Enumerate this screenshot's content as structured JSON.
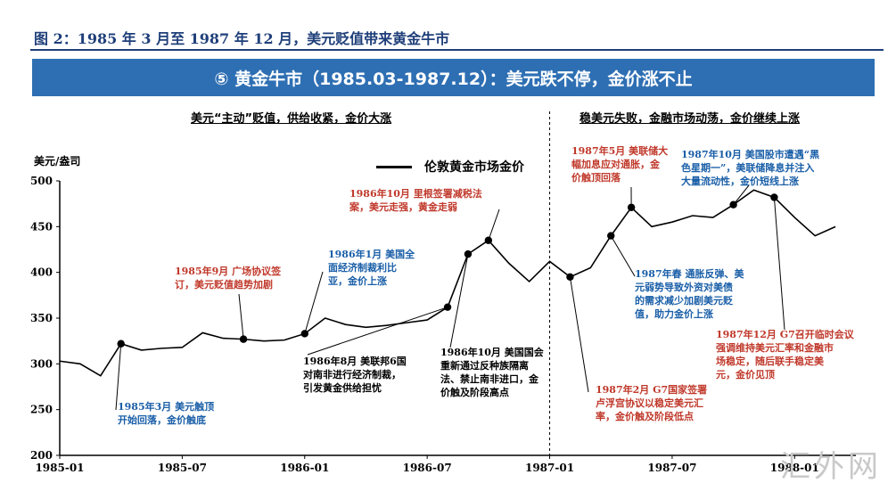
{
  "figure_title": "图 2：1985 年 3 月至 1987 年 12 月，美元贬值带来黄金牛市",
  "banner": "⑤ 黄金牛市（1985.03-1987.12）：美元跌不停，金价涨不止",
  "phases": [
    "美元“主动”贬值，供给收紧，金价大涨",
    "稳美元失败，金融市场动荡，金价继续上涨"
  ],
  "watermark": "汇外网",
  "colors": {
    "banner": "#2e6fb3",
    "title": "#1f3f7a",
    "red": "#c0392b",
    "blue": "#1a5fa8",
    "line": "#000000"
  },
  "annotations": [
    {
      "text": [
        "1985年3月 美元触顶",
        "开始回落，金价触底"
      ],
      "color": "blue",
      "point": 3
    },
    {
      "text": [
        "1985年9月 广场协议签",
        "订，美元贬值趋势加剧"
      ],
      "color": "red",
      "point": 9
    },
    {
      "text": [
        "1986年1月 美国全",
        "面经济制裁利比",
        "亚，金价上涨"
      ],
      "color": "blue",
      "point": 12
    },
    {
      "text": [
        "1986年8月 美联邦6国",
        "对南非进行经济制裁，",
        "引发黄金供给担忧"
      ],
      "color": "black",
      "point": 19
    },
    {
      "text": [
        "1986年10月 里根签署减税法",
        "案，美元走强，黄金走弱"
      ],
      "color": "red",
      "point": 21
    },
    {
      "text": [
        "1986年10月 美国国会",
        "重新通过反种族隔离",
        "法、禁止南非进口，金",
        "价触及阶段高点"
      ],
      "color": "black",
      "point": 20
    },
    {
      "text": [
        "1987年2月 G7国家签署",
        "卢浮宫协议以稳定美元汇",
        "率，金价触及阶段低点"
      ],
      "color": "red",
      "point": 25
    },
    {
      "text": [
        "1987年5月 美联储大",
        "幅加息应对通胀，金",
        "价触顶回落"
      ],
      "color": "red",
      "point": 28
    },
    {
      "text": [
        "1987年春 通胀反弹、美",
        "元弱势导致外资对美债",
        "的需求减少加剧美元贬",
        "值，助力金价上涨"
      ],
      "color": "blue",
      "point": 27
    },
    {
      "text": [
        "1987年10月 美国股市遭遇“黑",
        "色星期一”，美联储降息并注入",
        "大量流动性，金价短线上涨"
      ],
      "color": "blue",
      "point": 33
    },
    {
      "text": [
        "1987年12月 G7召开临时会议",
        "强调维持美元汇率和金融市",
        "场稳定，随后联手稳定美",
        "元，金价见顶"
      ],
      "color": "red",
      "point": 35
    }
  ],
  "chart_data": {
    "type": "line",
    "title": "",
    "xlabel": "",
    "ylabel": "美元/盎司",
    "ylim": [
      200,
      500
    ],
    "yticks": [
      200,
      250,
      300,
      350,
      400,
      450,
      500
    ],
    "xticks": [
      "1985-01",
      "1985-07",
      "1986-01",
      "1986-07",
      "1987-01",
      "1987-07",
      "1988-01"
    ],
    "x_start": "1985-01",
    "x_end": "1988-04",
    "divider": "1987-01",
    "series": [
      {
        "name": "伦敦黄金市场金价",
        "dates": [
          "1985-01",
          "1985-02",
          "1985-03",
          "1985-04",
          "1985-05",
          "1985-06",
          "1985-07",
          "1985-08",
          "1985-09",
          "1985-10",
          "1985-11",
          "1985-12",
          "1986-01",
          "1986-02",
          "1986-03",
          "1986-04",
          "1986-05",
          "1986-06",
          "1986-07",
          "1986-08",
          "1986-09",
          "1986-10",
          "1986-11",
          "1986-12",
          "1987-01",
          "1987-02",
          "1987-03",
          "1987-04",
          "1987-05",
          "1987-06",
          "1987-07",
          "1987-08",
          "1987-09",
          "1987-10",
          "1987-11",
          "1987-12",
          "1988-01",
          "1988-02",
          "1988-03"
        ],
        "values": [
          303,
          300,
          287,
          322,
          315,
          317,
          318,
          334,
          328,
          327,
          325,
          326,
          333,
          350,
          343,
          340,
          342,
          345,
          348,
          362,
          420,
          435,
          410,
          390,
          412,
          395,
          405,
          440,
          471,
          450,
          455,
          462,
          460,
          474,
          490,
          482,
          460,
          440,
          450
        ]
      }
    ]
  }
}
